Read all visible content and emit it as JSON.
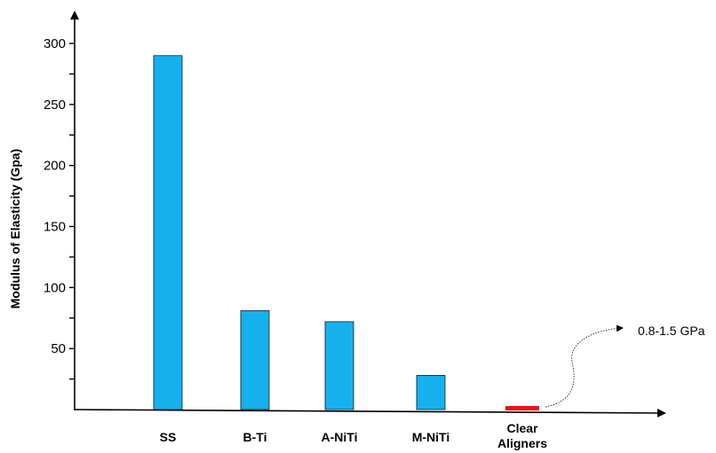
{
  "chart_data": {
    "type": "bar",
    "title": "",
    "xlabel": "",
    "ylabel": "Modulus of Elasticity (Gpa)",
    "ylim": [
      0,
      320
    ],
    "yticks": [
      50,
      100,
      150,
      200,
      250,
      300
    ],
    "grid": false,
    "legend": "none",
    "categories": [
      "SS",
      "B-Ti",
      "A-NiTi",
      "M-NiTi",
      "Clear\nAligners"
    ],
    "category_lines": [
      [
        "SS"
      ],
      [
        "B-Ti"
      ],
      [
        "A-NiTi"
      ],
      [
        "M-NiTi"
      ],
      [
        "Clear",
        "Aligners"
      ]
    ],
    "values": [
      290,
      81,
      72,
      28,
      1.5
    ],
    "colors": [
      "#15b1ee",
      "#15b1ee",
      "#15b1ee",
      "#15b1ee",
      "#ee1111"
    ],
    "annotations": [
      {
        "text": "0.8-1.5 GPa",
        "category": "Clear\nAligners"
      }
    ]
  }
}
